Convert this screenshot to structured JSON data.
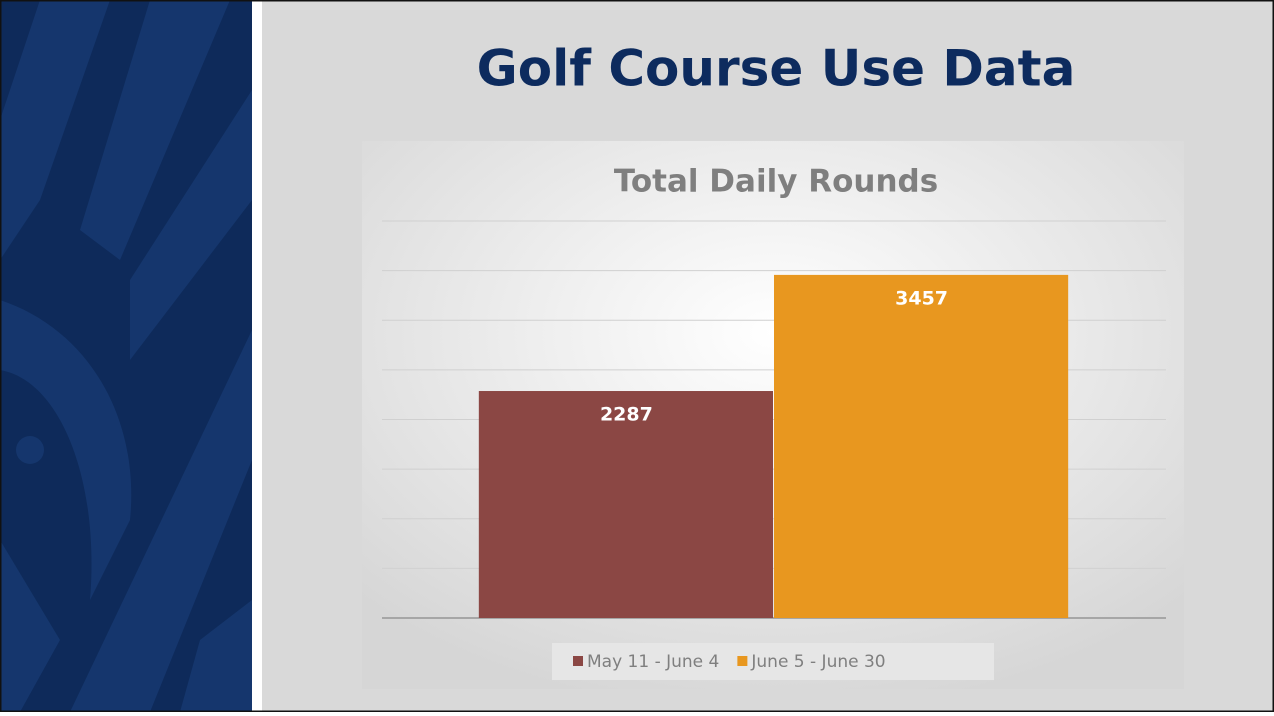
{
  "slide": {
    "title": "Golf Course Use Data"
  },
  "chart_data": {
    "type": "bar",
    "title": "Total Daily Rounds",
    "categories": [
      null
    ],
    "series": [
      {
        "name": "May 11 - June 4",
        "color": "#8b4744",
        "values": [
          2287
        ]
      },
      {
        "name": "June 5 - June 30",
        "color": "#e8971f",
        "values": [
          3457
        ]
      }
    ],
    "ylim": [
      0,
      4000
    ],
    "yticks": [
      0,
      500,
      1000,
      1500,
      2000,
      2500,
      3000,
      3500,
      4000
    ],
    "ytick_labels": false,
    "grid": true,
    "legend": "bottom",
    "data_labels": true
  }
}
